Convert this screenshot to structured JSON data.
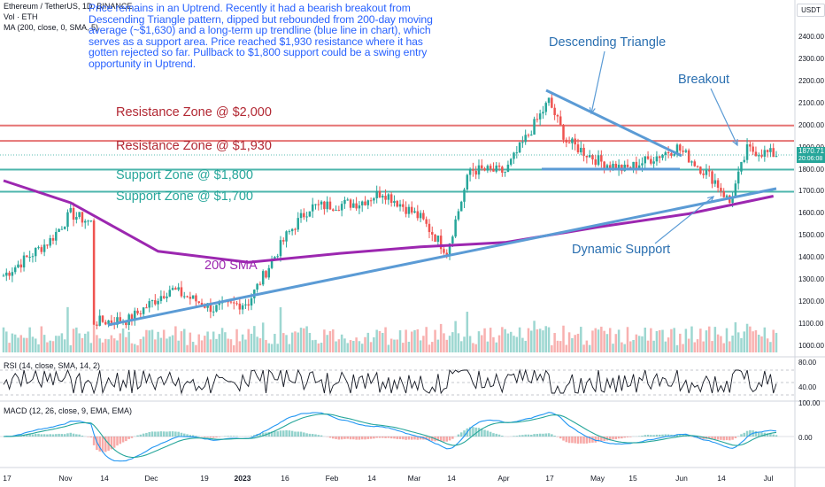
{
  "header": {
    "symbol_line": "Ethereum / TetherUS, 1D, BINANCE",
    "vol_line": "Vol · ETH",
    "ma_line": "MA (200, close, 0, SMA, 5)",
    "rsi_line": "RSI (14, close, SMA, 14, 2)",
    "macd_line": "MACD (12, 26, close, 9, EMA, EMA)"
  },
  "note": "Price remains in an Uptrend. Recently it had a bearish breakout from Descending Triangle pattern, dipped but rebounded from 200-day moving average (~$1,630) and a long-term up trendline (blue line in chart), which serves as a support area. Price reached $1,930 resistance where it has gotten rejected so far. Pullback to $1,800 support could be a swing entry opportunity in Uptrend.",
  "annotations": {
    "res_2000": "Resistance Zone @ $2,000",
    "res_1930": "Resistance Zone @ $1,930",
    "sup_1800": "Support Zone @ $1,800",
    "sup_1700": "Support Zone @ $1,700",
    "sma200": "200 SMA",
    "desc_triangle": "Descending Triangle",
    "breakout": "Breakout",
    "dyn_support": "Dynamic Support"
  },
  "price_axis": {
    "currency": "USDT",
    "ticks": [
      "2400.00",
      "2300.00",
      "2200.00",
      "2100.00",
      "2000.00",
      "1900.00",
      "1800.00",
      "1700.00",
      "1600.00",
      "1500.00",
      "1400.00",
      "1300.00",
      "1200.00",
      "1100.00",
      "1000.00"
    ],
    "last_price": "1870.71",
    "countdown": "20:06:08"
  },
  "rsi_axis": {
    "ticks": [
      "80.00",
      "40.00"
    ]
  },
  "macd_axis": {
    "ticks": [
      "100.00",
      "0.00"
    ]
  },
  "time_axis": [
    {
      "label": "17",
      "bold": false
    },
    {
      "label": "Nov",
      "bold": false
    },
    {
      "label": "14",
      "bold": false
    },
    {
      "label": "Dec",
      "bold": false
    },
    {
      "label": "19",
      "bold": false
    },
    {
      "label": "2023",
      "bold": true
    },
    {
      "label": "16",
      "bold": false
    },
    {
      "label": "Feb",
      "bold": false
    },
    {
      "label": "14",
      "bold": false
    },
    {
      "label": "Mar",
      "bold": false
    },
    {
      "label": "14",
      "bold": false
    },
    {
      "label": "Apr",
      "bold": false
    },
    {
      "label": "17",
      "bold": false
    },
    {
      "label": "May",
      "bold": false
    },
    {
      "label": "15",
      "bold": false
    },
    {
      "label": "Jun",
      "bold": false
    },
    {
      "label": "14",
      "bold": false
    },
    {
      "label": "Jul",
      "bold": false
    }
  ],
  "colors": {
    "up": "#26a69a",
    "down": "#ef5350",
    "sma": "#9c27b0",
    "trendline": "#5b9bd5",
    "resistance": "#e57373",
    "support": "#4db6ac",
    "rsi": "#131722",
    "macd": "#2196f3",
    "signal": "#26a69a"
  },
  "chart_data": {
    "type": "line",
    "title": "Ethereum / TetherUS, 1D, BINANCE",
    "xlabel": "",
    "ylabel": "",
    "ylim": [
      970,
      2460
    ],
    "date_range": [
      "2022-10-09",
      "2023-07-01"
    ],
    "series": [
      {
        "name": "ETH close (approx)",
        "x": [
          "2022-10-09",
          "2022-10-25",
          "2022-11-01",
          "2022-11-08",
          "2022-11-09",
          "2022-11-21",
          "2022-12-05",
          "2022-12-20",
          "2023-01-01",
          "2023-01-14",
          "2023-01-22",
          "2023-02-08",
          "2023-02-16",
          "2023-03-01",
          "2023-03-10",
          "2023-03-18",
          "2023-03-30",
          "2023-04-14",
          "2023-04-20",
          "2023-05-01",
          "2023-05-10",
          "2023-05-28",
          "2023-06-10",
          "2023-06-15",
          "2023-06-21",
          "2023-06-30"
        ],
        "values": [
          1320,
          1480,
          1600,
          1560,
          1110,
          1120,
          1260,
          1170,
          1200,
          1500,
          1630,
          1650,
          1700,
          1580,
          1430,
          1800,
          1790,
          2110,
          1930,
          1840,
          1800,
          1900,
          1750,
          1650,
          1890,
          1870
        ]
      },
      {
        "name": "MA (200, close, 0, SMA, 5)",
        "x": [
          "2022-10-09",
          "2022-11-01",
          "2022-12-01",
          "2023-01-01",
          "2023-02-01",
          "2023-03-01",
          "2023-03-30",
          "2023-05-01",
          "2023-06-01",
          "2023-06-30"
        ],
        "values": [
          1750,
          1650,
          1430,
          1380,
          1420,
          1450,
          1470,
          1540,
          1600,
          1680
        ]
      }
    ],
    "horizontal_levels": [
      2000,
      1930,
      1800,
      1700
    ],
    "rsi": {
      "ylim": [
        20,
        100
      ],
      "ticks": [
        80,
        40
      ]
    },
    "macd": {
      "ticks": [
        100,
        0
      ]
    }
  }
}
